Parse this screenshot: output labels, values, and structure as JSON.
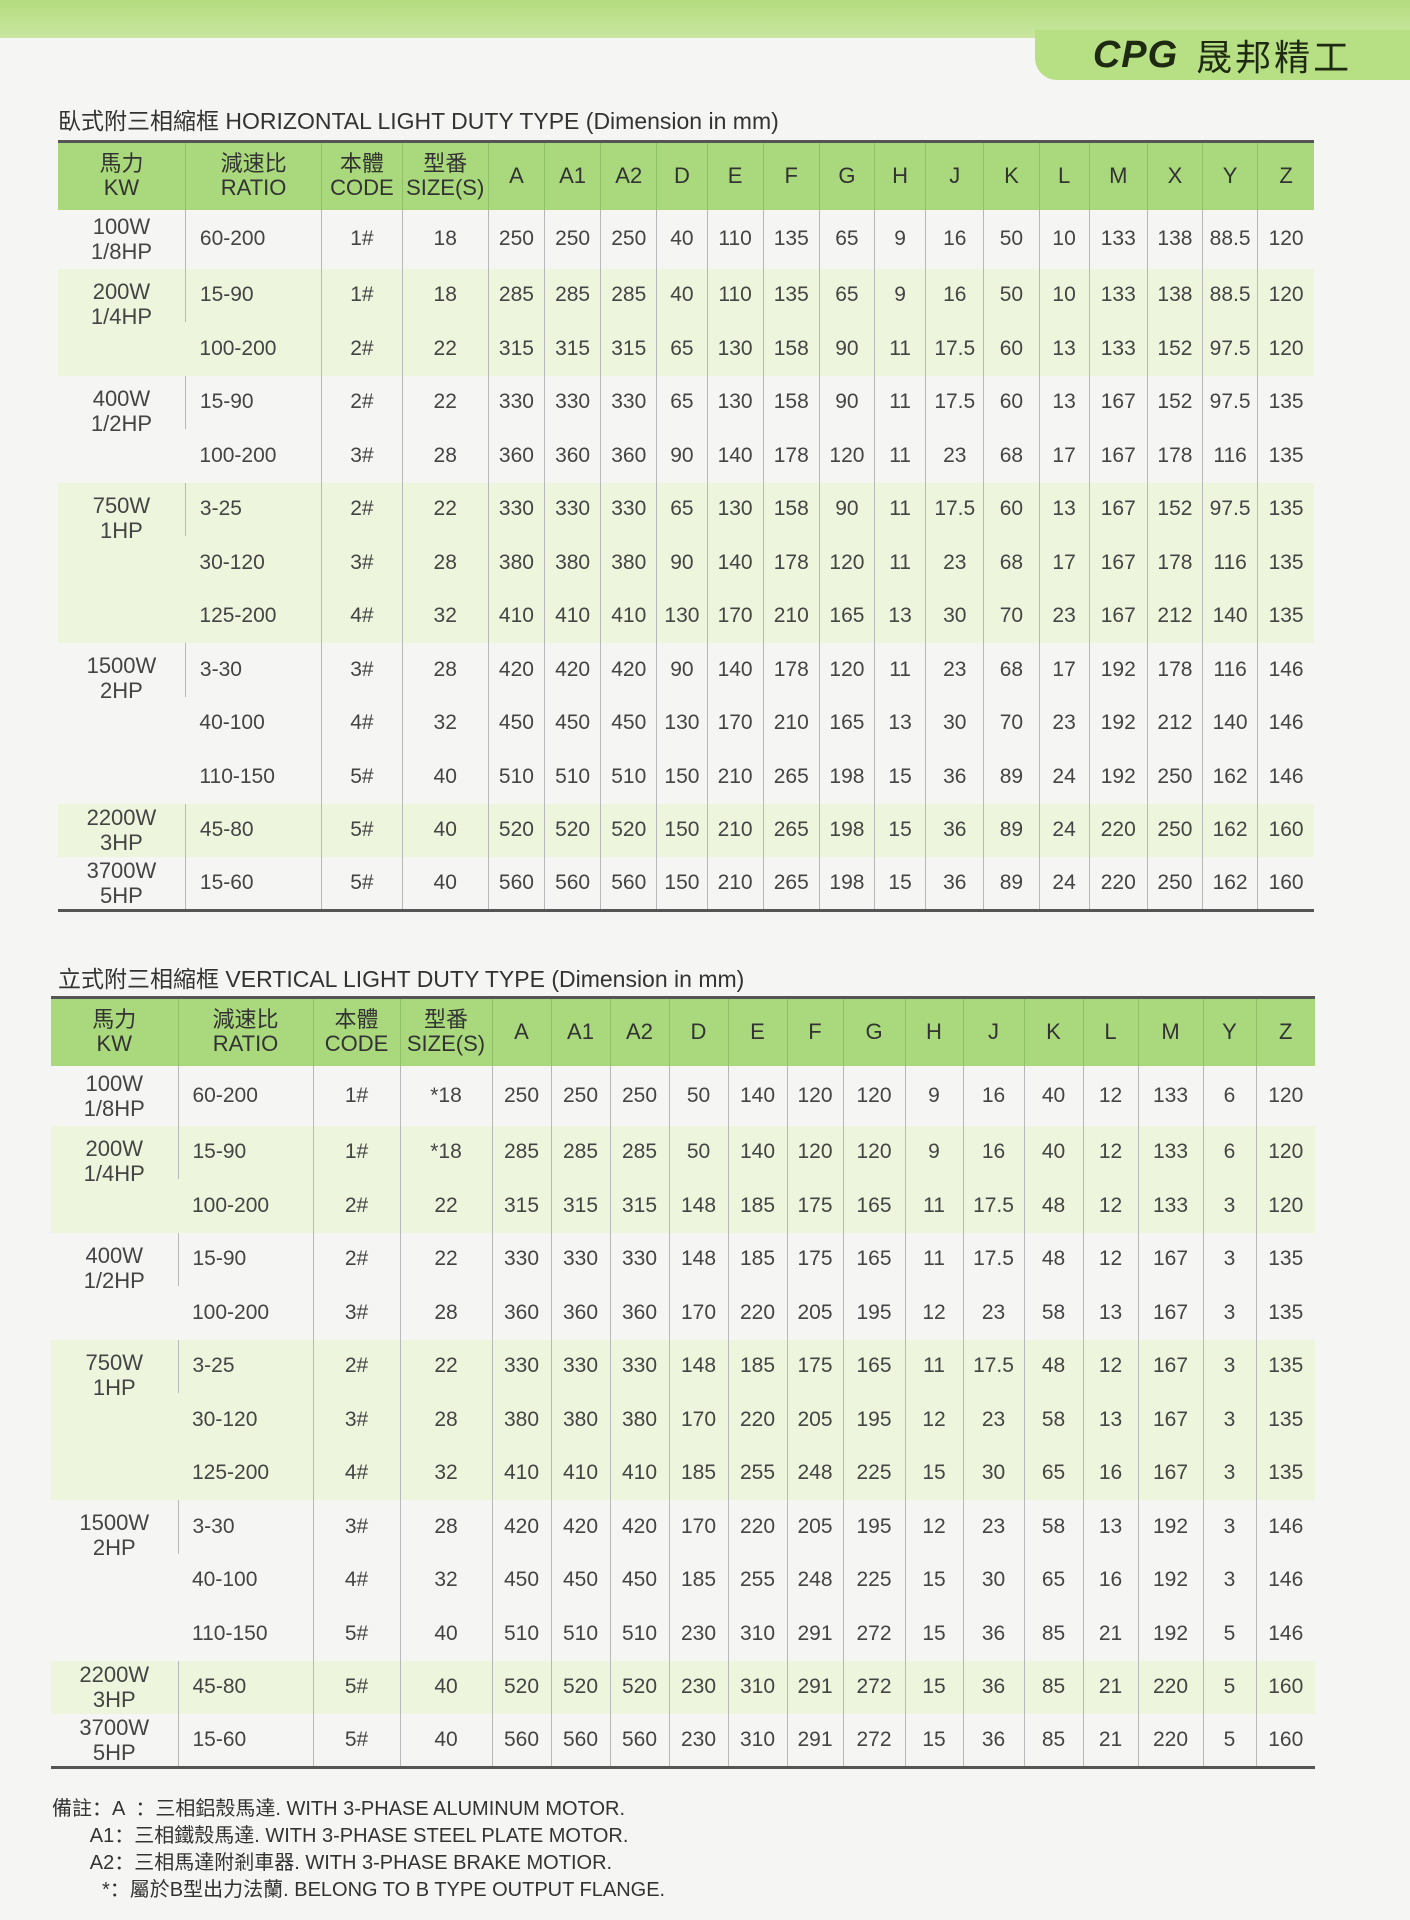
{
  "logo": {
    "mark": "CPG",
    "company": "晟邦精工"
  },
  "horizontal": {
    "title": "臥式附三相縮框 HORIZONTAL LIGHT DUTY TYPE (Dimension in mm)",
    "headers": [
      [
        "馬力",
        "KW"
      ],
      [
        "減速比",
        "RATIO"
      ],
      [
        "本體",
        "CODE"
      ],
      [
        "型番",
        "SIZE(S)"
      ],
      [
        "A"
      ],
      [
        "A1"
      ],
      [
        "A2"
      ],
      [
        "D"
      ],
      [
        "E"
      ],
      [
        "F"
      ],
      [
        "G"
      ],
      [
        "H"
      ],
      [
        "J"
      ],
      [
        "K"
      ],
      [
        "L"
      ],
      [
        "M"
      ],
      [
        "X"
      ],
      [
        "Y"
      ],
      [
        "Z"
      ]
    ],
    "groups": [
      {
        "power": [
          "100W",
          "1/8HP"
        ],
        "rows": [
          [
            "60-200",
            "1#",
            "18",
            "250",
            "250",
            "250",
            "40",
            "110",
            "135",
            "65",
            "9",
            "16",
            "50",
            "10",
            "133",
            "138",
            "88.5",
            "120"
          ]
        ]
      },
      {
        "power": [
          "200W",
          "1/4HP"
        ],
        "rows": [
          [
            "15-90",
            "1#",
            "18",
            "285",
            "285",
            "285",
            "40",
            "110",
            "135",
            "65",
            "9",
            "16",
            "50",
            "10",
            "133",
            "138",
            "88.5",
            "120"
          ],
          [
            "100-200",
            "2#",
            "22",
            "315",
            "315",
            "315",
            "65",
            "130",
            "158",
            "90",
            "11",
            "17.5",
            "60",
            "13",
            "133",
            "152",
            "97.5",
            "120"
          ]
        ]
      },
      {
        "power": [
          "400W",
          "1/2HP"
        ],
        "rows": [
          [
            "15-90",
            "2#",
            "22",
            "330",
            "330",
            "330",
            "65",
            "130",
            "158",
            "90",
            "11",
            "17.5",
            "60",
            "13",
            "167",
            "152",
            "97.5",
            "135"
          ],
          [
            "100-200",
            "3#",
            "28",
            "360",
            "360",
            "360",
            "90",
            "140",
            "178",
            "120",
            "11",
            "23",
            "68",
            "17",
            "167",
            "178",
            "116",
            "135"
          ]
        ]
      },
      {
        "power": [
          "750W",
          "1HP"
        ],
        "rows": [
          [
            "3-25",
            "2#",
            "22",
            "330",
            "330",
            "330",
            "65",
            "130",
            "158",
            "90",
            "11",
            "17.5",
            "60",
            "13",
            "167",
            "152",
            "97.5",
            "135"
          ],
          [
            "30-120",
            "3#",
            "28",
            "380",
            "380",
            "380",
            "90",
            "140",
            "178",
            "120",
            "11",
            "23",
            "68",
            "17",
            "167",
            "178",
            "116",
            "135"
          ],
          [
            "125-200",
            "4#",
            "32",
            "410",
            "410",
            "410",
            "130",
            "170",
            "210",
            "165",
            "13",
            "30",
            "70",
            "23",
            "167",
            "212",
            "140",
            "135"
          ]
        ]
      },
      {
        "power": [
          "1500W",
          "2HP"
        ],
        "rows": [
          [
            "3-30",
            "3#",
            "28",
            "420",
            "420",
            "420",
            "90",
            "140",
            "178",
            "120",
            "11",
            "23",
            "68",
            "17",
            "192",
            "178",
            "116",
            "146"
          ],
          [
            "40-100",
            "4#",
            "32",
            "450",
            "450",
            "450",
            "130",
            "170",
            "210",
            "165",
            "13",
            "30",
            "70",
            "23",
            "192",
            "212",
            "140",
            "146"
          ],
          [
            "110-150",
            "5#",
            "40",
            "510",
            "510",
            "510",
            "150",
            "210",
            "265",
            "198",
            "15",
            "36",
            "89",
            "24",
            "192",
            "250",
            "162",
            "146"
          ]
        ]
      },
      {
        "power": [
          "2200W",
          "3HP"
        ],
        "rows": [
          [
            "45-80",
            "5#",
            "40",
            "520",
            "520",
            "520",
            "150",
            "210",
            "265",
            "198",
            "15",
            "36",
            "89",
            "24",
            "220",
            "250",
            "162",
            "160"
          ]
        ]
      },
      {
        "power": [
          "3700W",
          "5HP"
        ],
        "rows": [
          [
            "15-60",
            "5#",
            "40",
            "560",
            "560",
            "560",
            "150",
            "210",
            "265",
            "198",
            "15",
            "36",
            "89",
            "24",
            "220",
            "250",
            "162",
            "160"
          ]
        ]
      }
    ]
  },
  "vertical": {
    "title": "立式附三相縮框 VERTICAL LIGHT DUTY TYPE (Dimension in mm)",
    "headers": [
      [
        "馬力",
        "KW"
      ],
      [
        "減速比",
        "RATIO"
      ],
      [
        "本體",
        "CODE"
      ],
      [
        "型番",
        "SIZE(S)"
      ],
      [
        "A"
      ],
      [
        "A1"
      ],
      [
        "A2"
      ],
      [
        "D"
      ],
      [
        "E"
      ],
      [
        "F"
      ],
      [
        "G"
      ],
      [
        "H"
      ],
      [
        "J"
      ],
      [
        "K"
      ],
      [
        "L"
      ],
      [
        "M"
      ],
      [
        "Y"
      ],
      [
        "Z"
      ]
    ],
    "groups": [
      {
        "power": [
          "100W",
          "1/8HP"
        ],
        "rows": [
          [
            "60-200",
            "1#",
            "*18",
            "250",
            "250",
            "250",
            "50",
            "140",
            "120",
            "120",
            "9",
            "16",
            "40",
            "12",
            "133",
            "6",
            "120"
          ]
        ]
      },
      {
        "power": [
          "200W",
          "1/4HP"
        ],
        "rows": [
          [
            "15-90",
            "1#",
            "*18",
            "285",
            "285",
            "285",
            "50",
            "140",
            "120",
            "120",
            "9",
            "16",
            "40",
            "12",
            "133",
            "6",
            "120"
          ],
          [
            "100-200",
            "2#",
            "22",
            "315",
            "315",
            "315",
            "148",
            "185",
            "175",
            "165",
            "11",
            "17.5",
            "48",
            "12",
            "133",
            "3",
            "120"
          ]
        ]
      },
      {
        "power": [
          "400W",
          "1/2HP"
        ],
        "rows": [
          [
            "15-90",
            "2#",
            "22",
            "330",
            "330",
            "330",
            "148",
            "185",
            "175",
            "165",
            "11",
            "17.5",
            "48",
            "12",
            "167",
            "3",
            "135"
          ],
          [
            "100-200",
            "3#",
            "28",
            "360",
            "360",
            "360",
            "170",
            "220",
            "205",
            "195",
            "12",
            "23",
            "58",
            "13",
            "167",
            "3",
            "135"
          ]
        ]
      },
      {
        "power": [
          "750W",
          "1HP"
        ],
        "rows": [
          [
            "3-25",
            "2#",
            "22",
            "330",
            "330",
            "330",
            "148",
            "185",
            "175",
            "165",
            "11",
            "17.5",
            "48",
            "12",
            "167",
            "3",
            "135"
          ],
          [
            "30-120",
            "3#",
            "28",
            "380",
            "380",
            "380",
            "170",
            "220",
            "205",
            "195",
            "12",
            "23",
            "58",
            "13",
            "167",
            "3",
            "135"
          ],
          [
            "125-200",
            "4#",
            "32",
            "410",
            "410",
            "410",
            "185",
            "255",
            "248",
            "225",
            "15",
            "30",
            "65",
            "16",
            "167",
            "3",
            "135"
          ]
        ]
      },
      {
        "power": [
          "1500W",
          "2HP"
        ],
        "rows": [
          [
            "3-30",
            "3#",
            "28",
            "420",
            "420",
            "420",
            "170",
            "220",
            "205",
            "195",
            "12",
            "23",
            "58",
            "13",
            "192",
            "3",
            "146"
          ],
          [
            "40-100",
            "4#",
            "32",
            "450",
            "450",
            "450",
            "185",
            "255",
            "248",
            "225",
            "15",
            "30",
            "65",
            "16",
            "192",
            "3",
            "146"
          ],
          [
            "110-150",
            "5#",
            "40",
            "510",
            "510",
            "510",
            "230",
            "310",
            "291",
            "272",
            "15",
            "36",
            "85",
            "21",
            "192",
            "5",
            "146"
          ]
        ]
      },
      {
        "power": [
          "2200W",
          "3HP"
        ],
        "rows": [
          [
            "45-80",
            "5#",
            "40",
            "520",
            "520",
            "520",
            "230",
            "310",
            "291",
            "272",
            "15",
            "36",
            "85",
            "21",
            "220",
            "5",
            "160"
          ]
        ]
      },
      {
        "power": [
          "3700W",
          "5HP"
        ],
        "rows": [
          [
            "15-60",
            "5#",
            "40",
            "560",
            "560",
            "560",
            "230",
            "310",
            "291",
            "272",
            "15",
            "36",
            "85",
            "21",
            "220",
            "5",
            "160"
          ]
        ]
      }
    ]
  },
  "notes": [
    "備註：A  ：三相鋁殼馬達. WITH 3-PHASE ALUMINUM MOTOR.",
    "       A1：三相鐵殼馬達. WITH 3-PHASE STEEL PLATE MOTOR.",
    "       A2：三相馬達附剎車器. WITH 3-PHASE BRAKE MOTIOR.",
    "         *：屬於B型出力法蘭. BELONG TO B TYPE OUTPUT FLANGE."
  ]
}
